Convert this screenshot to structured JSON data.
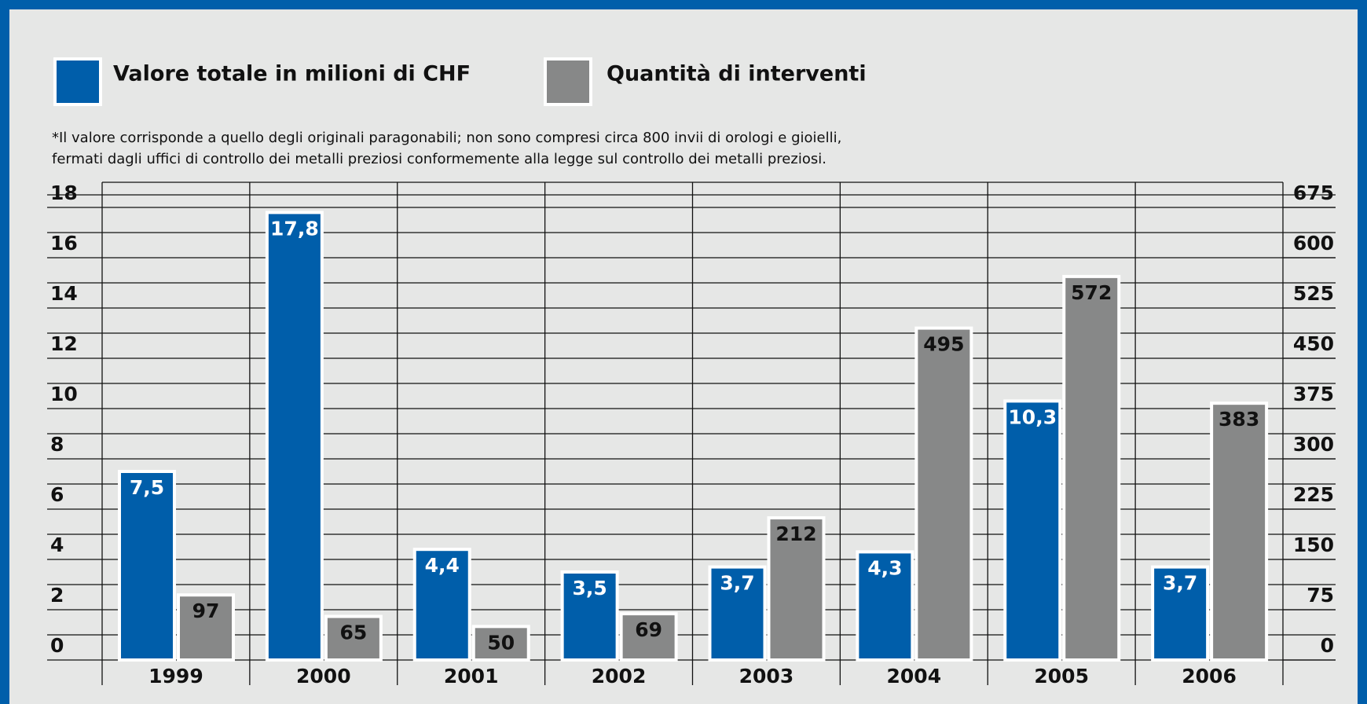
{
  "chart_data": {
    "type": "bar",
    "note": [
      "*Il valore corrisponde a quello degli originali paragonabili; non sono compresi circa 800 invii di orologi e gioielli,",
      "fermati dagli uffici di controllo dei metalli preziosi conformemente alla legge sul controllo dei metalli preziosi."
    ],
    "categories": [
      "1999",
      "2000",
      "2001",
      "2002",
      "2003",
      "2004",
      "2005",
      "2006"
    ],
    "series": [
      {
        "name": "Valore totale in milioni di CHF",
        "color": "#005eaa",
        "label_color": "#ffffff",
        "values": [
          7.5,
          17.8,
          4.4,
          3.5,
          3.7,
          4.3,
          10.3,
          3.7
        ],
        "value_labels": [
          "7,5",
          "17,8",
          "4,4",
          "3,5",
          "3,7",
          "4,3",
          "10,3",
          "3,7"
        ]
      },
      {
        "name": "Quantità di interventi",
        "color": "#878888",
        "label_color": "#111111",
        "axis": "y2",
        "values": [
          97,
          65,
          50,
          69,
          212,
          495,
          572,
          383
        ]
      }
    ],
    "ylim": [
      0,
      19
    ],
    "yticks": [
      0,
      2,
      4,
      6,
      8,
      10,
      12,
      14,
      16,
      18
    ],
    "y2lim": [
      0,
      712.5
    ],
    "y2ticks": [
      0,
      75,
      150,
      225,
      300,
      375,
      450,
      525,
      600,
      675
    ],
    "grid": true
  }
}
